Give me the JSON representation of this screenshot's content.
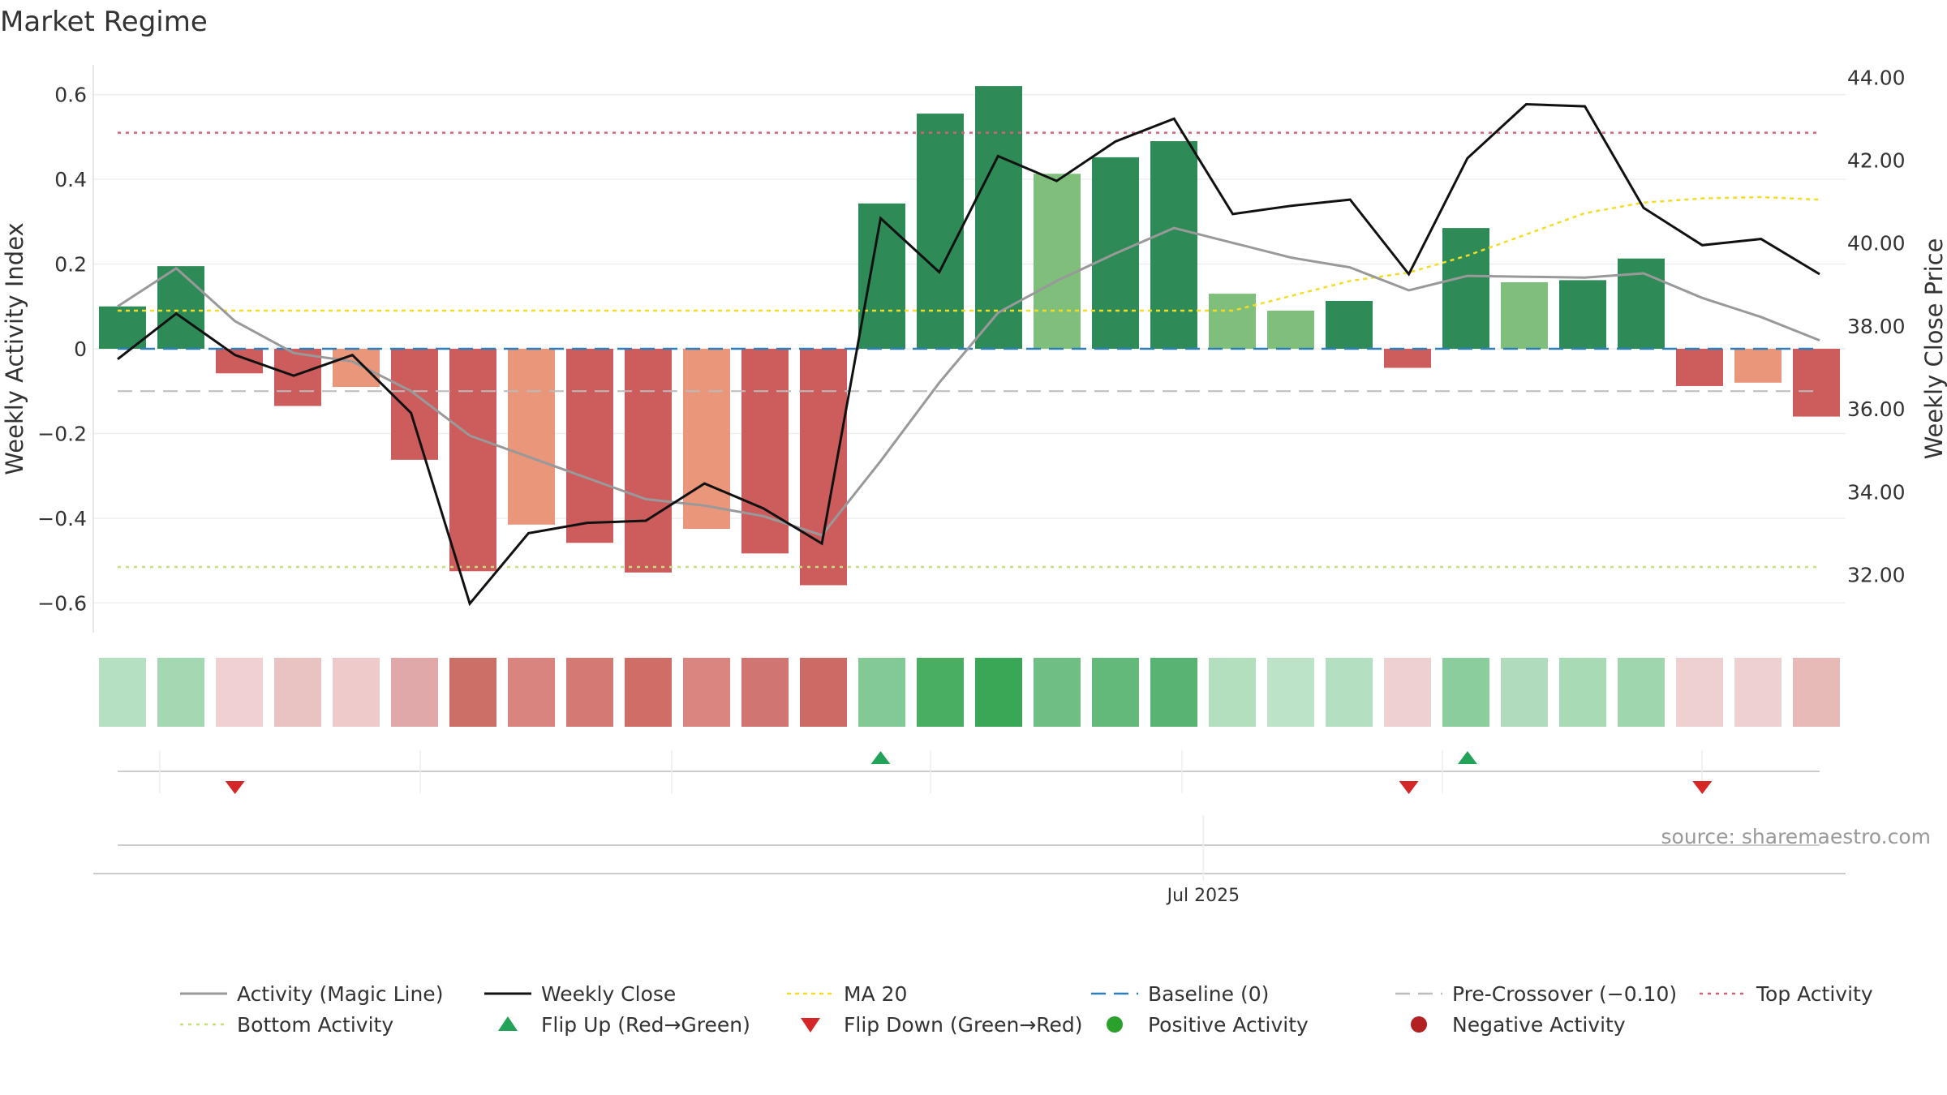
{
  "chart_data": {
    "type": "bar",
    "title": "Market Regime",
    "ylabel": "Weekly Activity Index",
    "y2label": "Weekly Close Price",
    "ylim": [
      -0.67,
      0.67
    ],
    "y2lim": [
      30.6,
      44.3
    ],
    "yticks": [
      0.6,
      0.4,
      0.2,
      0,
      -0.2,
      -0.4,
      -0.6
    ],
    "ytick_labels": [
      "0.6",
      "0.4",
      "0.2",
      "0",
      "−0.2",
      "−0.4",
      "−0.6"
    ],
    "y2ticks": [
      44,
      42,
      40,
      38,
      36,
      34,
      32
    ],
    "y2tick_labels": [
      "44.00",
      "42.00",
      "40.00",
      "38.00",
      "36.00",
      "34.00",
      "32.00"
    ],
    "x_tick_label": "Jul 2025",
    "x_tick_index": 18.5,
    "source": "source: sharemaestro.com",
    "levels": {
      "top": 0.51,
      "bottom": -0.515,
      "ma_base": 0.09,
      "pre_crossover": -0.1,
      "baseline": 0
    },
    "values": [
      0.1,
      0.195,
      -0.058,
      -0.135,
      -0.09,
      -0.262,
      -0.525,
      -0.415,
      -0.458,
      -0.528,
      -0.425,
      -0.483,
      -0.558,
      0.343,
      0.555,
      0.62,
      0.413,
      0.452,
      0.49,
      0.13,
      0.09,
      0.113,
      -0.045,
      0.285,
      0.157,
      0.162,
      0.213,
      -0.088,
      -0.08,
      -0.16
    ],
    "bar_colors": [
      "#2e8b57",
      "#2e8b57",
      "#cd5c5c",
      "#cd5c5c",
      "#e9967a",
      "#cd5c5c",
      "#cd5c5c",
      "#e9967a",
      "#cd5c5c",
      "#cd5c5c",
      "#e9967a",
      "#cd5c5c",
      "#cd5c5c",
      "#2e8b57",
      "#2e8b57",
      "#2e8b57",
      "#7fbf7b",
      "#2e8b57",
      "#2e8b57",
      "#7fbf7b",
      "#7fbf7b",
      "#2e8b57",
      "#cd5c5c",
      "#2e8b57",
      "#7fbf7b",
      "#2e8b57",
      "#2e8b57",
      "#cd5c5c",
      "#e9967a",
      "#cd5c5c"
    ],
    "magic_line": [
      0.1,
      0.19,
      0.065,
      -0.01,
      -0.03,
      -0.1,
      -0.205,
      -0.255,
      -0.305,
      -0.355,
      -0.37,
      -0.395,
      -0.44,
      -0.265,
      -0.08,
      0.085,
      0.16,
      0.225,
      0.285,
      0.25,
      0.215,
      0.192,
      0.138,
      0.172,
      0.17,
      0.168,
      0.178,
      0.12,
      0.075,
      0.02
    ],
    "ma20": [
      0.09,
      0.09,
      0.09,
      0.09,
      0.09,
      0.09,
      0.09,
      0.09,
      0.09,
      0.09,
      0.09,
      0.09,
      0.09,
      0.09,
      0.09,
      0.09,
      0.09,
      0.09,
      0.09,
      0.09,
      0.125,
      0.16,
      0.18,
      0.22,
      0.27,
      0.32,
      0.345,
      0.355,
      0.358,
      0.352
    ],
    "weekly_close": [
      37.2,
      38.3,
      37.3,
      36.8,
      37.3,
      35.9,
      31.3,
      33.0,
      33.25,
      33.3,
      34.2,
      33.6,
      32.75,
      40.6,
      39.3,
      42.1,
      41.5,
      42.45,
      43.0,
      40.7,
      40.9,
      41.05,
      39.25,
      42.05,
      43.35,
      43.3,
      40.85,
      39.95,
      40.1,
      39.25
    ],
    "strip_colors": [
      "#b5e0c2",
      "#a3d8b2",
      "#f0d0d0",
      "#e9c2c2",
      "#eecaca",
      "#e0a8a8",
      "#cc6f66",
      "#d9847f",
      "#d47974",
      "#cf6e66",
      "#da8580",
      "#d17572",
      "#cc6b66",
      "#82c995",
      "#4aae62",
      "#3aa757",
      "#6fbe84",
      "#63b97a",
      "#58b472",
      "#b3dfbf",
      "#bce3c8",
      "#b4dfc0",
      "#efd0d0",
      "#8ccd9d",
      "#b0dcbd",
      "#a8dab5",
      "#a0d6ae",
      "#efd0d0",
      "#efd0d0",
      "#e7bab8"
    ],
    "flips": [
      {
        "index": 2,
        "direction": "down"
      },
      {
        "index": 13,
        "direction": "up"
      },
      {
        "index": 22,
        "direction": "down"
      },
      {
        "index": 23,
        "direction": "up"
      },
      {
        "index": 27,
        "direction": "down"
      }
    ],
    "colors": {
      "magic": "#999999",
      "close": "#111111",
      "ma": "#f2dc24",
      "baseline": "#2c7fb8",
      "pre": "#bbbbbb",
      "top": "#d6607a",
      "bottom": "#c5df7d",
      "flip_up": "#23a35a",
      "flip_down": "#d62728",
      "pos": "#2ca02c",
      "neg": "#b22222"
    },
    "legend": [
      {
        "label": "Activity (Magic Line)",
        "symbol": "solid-gray"
      },
      {
        "label": "Weekly Close",
        "symbol": "solid-black"
      },
      {
        "label": "MA 20",
        "symbol": "dotted-yellow"
      },
      {
        "label": "Baseline (0)",
        "symbol": "dashed-blue"
      },
      {
        "label": "Pre-Crossover (−0.10)",
        "symbol": "dashed-gray"
      },
      {
        "label": "Top Activity",
        "symbol": "dotted-red"
      },
      {
        "label": "Bottom Activity",
        "symbol": "dotted-green"
      },
      {
        "label": "Flip Up (Red→Green)",
        "symbol": "triangle-up"
      },
      {
        "label": "Flip Down (Green→Red)",
        "symbol": "triangle-down"
      },
      {
        "label": "Positive Activity",
        "symbol": "dot-green"
      },
      {
        "label": "Negative Activity",
        "symbol": "dot-red"
      }
    ]
  }
}
